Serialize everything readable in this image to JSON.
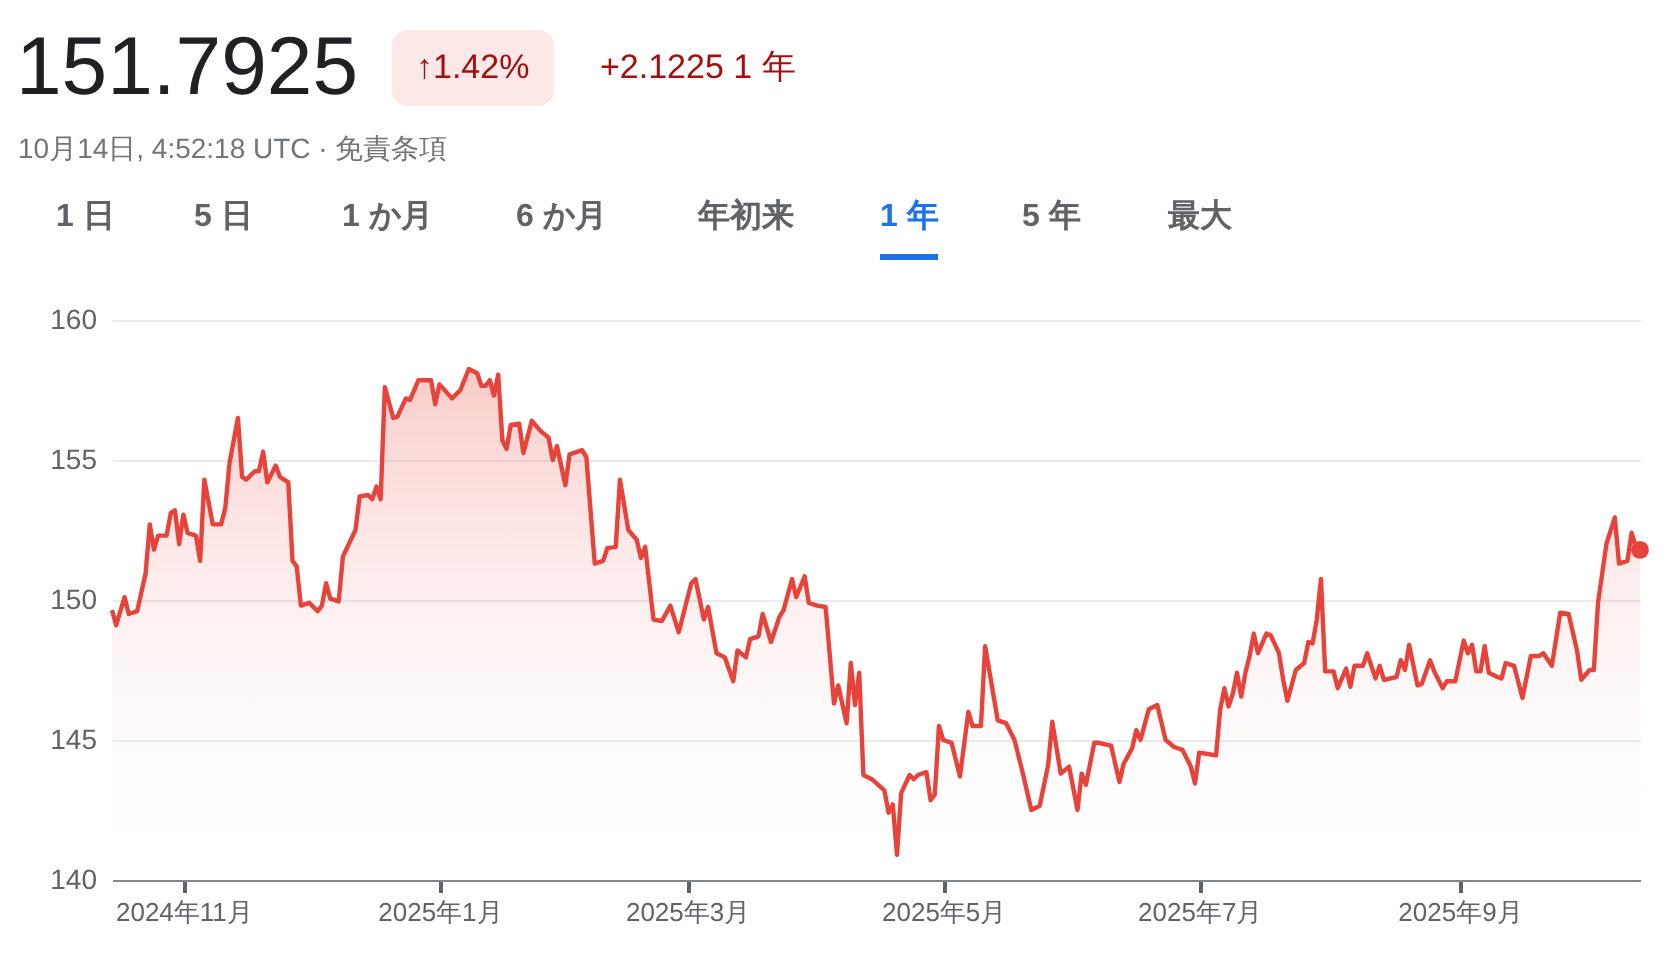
{
  "chart_data": {
    "type": "area",
    "title": "151.7925",
    "subtitle": "10月14日, 4:52:18 UTC · 免責条項",
    "annotations": [
      "↑1.42%",
      "+2.1225 1 年",
      "1 日",
      "5 日",
      "1 か月",
      "6 か月",
      "年初来",
      "1 年",
      "5 年",
      "最大"
    ],
    "series": [
      {
        "color": "#e8433a",
        "x": [
          "2024-10-15",
          "2024-10-16",
          "2024-10-18",
          "2024-10-19",
          "2024-10-21",
          "2024-10-23",
          "2024-10-24",
          "2024-10-25",
          "2024-10-26",
          "2024-10-28",
          "2024-10-29",
          "2024-10-30",
          "2024-10-31",
          "2024-11-01",
          "2024-11-02",
          "2024-11-04",
          "2024-11-05",
          "2024-11-06",
          "2024-11-08",
          "2024-11-10",
          "2024-11-11",
          "2024-11-12",
          "2024-11-14",
          "2024-11-15",
          "2024-11-16",
          "2024-11-18",
          "2024-11-19",
          "2024-11-20",
          "2024-11-21",
          "2024-11-23",
          "2024-11-24",
          "2024-11-26",
          "2024-11-27",
          "2024-11-28",
          "2024-11-29",
          "2024-12-01",
          "2024-12-03",
          "2024-12-04",
          "2024-12-05",
          "2024-12-06",
          "2024-12-08",
          "2024-12-09",
          "2024-12-12",
          "2024-12-13",
          "2024-12-15",
          "2024-12-16",
          "2024-12-17",
          "2024-12-18",
          "2024-12-19",
          "2024-12-21",
          "2024-12-22",
          "2024-12-24",
          "2024-12-25",
          "2024-12-27",
          "2024-12-30",
          "2024-12-31",
          "2025-01-01",
          "2025-01-04",
          "2025-01-06",
          "2025-01-08",
          "2025-01-10",
          "2025-01-11",
          "2025-01-12",
          "2025-01-13",
          "2025-01-14",
          "2025-01-15",
          "2025-01-16",
          "2025-01-17",
          "2025-01-18",
          "2025-01-20",
          "2025-01-21",
          "2025-01-23",
          "2025-01-25",
          "2025-01-27",
          "2025-01-28",
          "2025-01-29",
          "2025-01-31",
          "2025-02-01",
          "2025-02-04",
          "2025-02-05",
          "2025-02-07",
          "2025-02-09",
          "2025-02-10",
          "2025-02-12",
          "2025-02-13",
          "2025-02-15",
          "2025-02-17",
          "2025-02-18",
          "2025-02-19",
          "2025-02-21",
          "2025-02-23",
          "2025-02-25",
          "2025-02-27",
          "2025-03-02",
          "2025-03-03",
          "2025-03-05",
          "2025-03-06",
          "2025-03-08",
          "2025-03-10",
          "2025-03-12",
          "2025-03-13",
          "2025-03-15",
          "2025-03-16",
          "2025-03-18",
          "2025-03-19",
          "2025-03-21",
          "2025-03-23",
          "2025-03-24",
          "2025-03-26",
          "2025-03-27",
          "2025-03-29",
          "2025-03-30",
          "2025-04-01",
          "2025-04-03",
          "2025-04-05",
          "2025-04-06",
          "2025-04-08",
          "2025-04-09",
          "2025-04-10",
          "2025-04-11",
          "2025-04-12",
          "2025-04-14",
          "2025-04-17",
          "2025-04-18",
          "2025-04-19",
          "2025-04-20",
          "2025-04-21",
          "2025-04-23",
          "2025-04-24",
          "2025-04-25",
          "2025-04-27",
          "2025-04-28",
          "2025-04-29",
          "2025-04-30",
          "2025-05-01",
          "2025-05-03",
          "2025-05-05",
          "2025-05-07",
          "2025-05-08",
          "2025-05-10",
          "2025-05-11",
          "2025-05-14",
          "2025-05-16",
          "2025-05-18",
          "2025-05-20",
          "2025-05-22",
          "2025-05-24",
          "2025-05-26",
          "2025-05-27",
          "2025-05-29",
          "2025-05-31",
          "2025-06-02",
          "2025-06-03",
          "2025-06-04",
          "2025-06-06",
          "2025-06-07",
          "2025-06-10",
          "2025-06-12",
          "2025-06-13",
          "2025-06-15",
          "2025-06-16",
          "2025-06-17",
          "2025-06-19",
          "2025-06-21",
          "2025-06-23",
          "2025-06-25",
          "2025-06-27",
          "2025-06-29",
          "2025-06-30",
          "2025-07-01",
          "2025-07-03",
          "2025-07-05",
          "2025-07-06",
          "2025-07-07",
          "2025-07-08",
          "2025-07-09",
          "2025-07-10",
          "2025-07-11",
          "2025-07-12",
          "2025-07-13",
          "2025-07-14",
          "2025-07-15",
          "2025-07-17",
          "2025-07-18",
          "2025-07-20",
          "2025-07-21",
          "2025-07-22",
          "2025-07-24",
          "2025-07-26",
          "2025-07-27",
          "2025-07-28",
          "2025-07-29",
          "2025-07-30",
          "2025-07-31",
          "2025-08-02",
          "2025-08-03",
          "2025-08-05",
          "2025-08-06",
          "2025-08-07",
          "2025-08-09",
          "2025-08-10",
          "2025-08-12",
          "2025-08-13",
          "2025-08-14",
          "2025-08-17",
          "2025-08-18",
          "2025-08-19",
          "2025-08-20",
          "2025-08-22",
          "2025-08-23",
          "2025-08-25",
          "2025-08-26",
          "2025-08-28",
          "2025-08-29",
          "2025-08-31",
          "2025-09-02",
          "2025-09-03",
          "2025-09-04",
          "2025-09-05",
          "2025-09-06",
          "2025-09-07",
          "2025-09-08",
          "2025-09-10",
          "2025-09-11",
          "2025-09-12",
          "2025-09-14",
          "2025-09-16",
          "2025-09-18",
          "2025-09-20",
          "2025-09-21",
          "2025-09-23",
          "2025-09-25",
          "2025-09-27",
          "2025-09-29",
          "2025-09-30",
          "2025-10-02",
          "2025-10-03",
          "2025-10-04",
          "2025-10-06",
          "2025-10-08",
          "2025-10-09",
          "2025-10-11",
          "2025-10-12",
          "2025-10-13",
          "2025-10-14"
        ],
        "values": [
          149.64,
          149.1,
          150.1,
          149.5,
          149.6,
          150.95,
          152.7,
          151.8,
          152.3,
          152.3,
          153.1,
          153.2,
          152.0,
          153.05,
          152.4,
          152.3,
          151.4,
          154.3,
          152.7,
          152.7,
          153.3,
          154.9,
          156.5,
          154.4,
          154.3,
          154.6,
          154.6,
          155.3,
          154.2,
          154.8,
          154.4,
          154.2,
          151.4,
          151.2,
          149.8,
          149.9,
          149.6,
          149.8,
          150.6,
          150.05,
          149.95,
          151.55,
          152.5,
          153.7,
          153.75,
          153.6,
          154.05,
          153.6,
          157.6,
          156.5,
          156.55,
          157.2,
          157.15,
          157.85,
          157.85,
          157.0,
          157.7,
          157.2,
          157.5,
          158.25,
          158.1,
          157.65,
          157.65,
          157.85,
          157.3,
          158.05,
          155.7,
          155.4,
          156.25,
          156.3,
          155.25,
          156.4,
          156.05,
          155.8,
          155.0,
          155.5,
          154.1,
          155.2,
          155.35,
          155.1,
          151.3,
          151.4,
          151.85,
          151.9,
          154.3,
          152.5,
          152.15,
          151.5,
          151.9,
          149.3,
          149.25,
          149.8,
          148.85,
          150.6,
          150.75,
          149.3,
          149.75,
          148.1,
          147.95,
          147.1,
          148.2,
          147.95,
          148.6,
          148.7,
          149.5,
          148.5,
          149.4,
          149.65,
          150.75,
          150.1,
          150.85,
          149.9,
          149.8,
          149.75,
          146.3,
          146.95,
          145.6,
          147.75,
          146.25,
          147.4,
          143.75,
          143.6,
          143.2,
          142.4,
          142.7,
          140.9,
          143.1,
          143.75,
          143.6,
          143.75,
          143.85,
          142.85,
          143.05,
          145.5,
          145.0,
          144.9,
          143.7,
          146.0,
          145.5,
          145.5,
          148.35,
          145.7,
          145.6,
          145.0,
          143.8,
          142.5,
          142.65,
          144.1,
          145.65,
          143.8,
          144.05,
          142.5,
          143.8,
          143.4,
          144.9,
          144.9,
          144.8,
          143.5,
          144.15,
          144.7,
          145.35,
          145.0,
          146.1,
          146.25,
          145.0,
          144.75,
          144.65,
          144.05,
          143.45,
          144.55,
          144.5,
          144.45,
          146.1,
          146.85,
          146.2,
          146.65,
          147.4,
          146.55,
          147.4,
          148.0,
          148.8,
          148.1,
          148.8,
          148.75,
          148.1,
          147.15,
          146.4,
          147.5,
          147.75,
          148.5,
          148.45,
          149.3,
          150.75,
          147.45,
          147.45,
          146.85,
          147.55,
          146.9,
          147.65,
          147.65,
          148.1,
          147.2,
          147.65,
          147.15,
          147.25,
          147.85,
          147.5,
          148.4,
          146.95,
          147.0,
          147.85,
          147.45,
          146.85,
          147.1,
          147.1,
          148.55,
          148.1,
          148.4,
          147.45,
          147.45,
          148.35,
          147.4,
          147.25,
          147.2,
          147.75,
          147.65,
          146.5,
          148.0,
          148.0,
          148.1,
          147.65,
          149.55,
          149.5,
          148.2,
          147.15,
          147.5,
          147.5,
          149.9,
          152.0,
          152.95,
          151.3,
          151.4,
          152.4,
          151.9,
          151.79
        ]
      },
      {
        "type": "scatter",
        "color": "#e8433a",
        "x": [
          "2025-10-14"
        ],
        "values": [
          151.79
        ]
      }
    ],
    "xlim": [
      "2024-10-15",
      "2025-10-14"
    ],
    "xticks": [
      {
        "value": "2024-11-01",
        "label": "2024年11月"
      },
      {
        "value": "2025-01-01",
        "label": "2025年1月"
      },
      {
        "value": "2025-03-01",
        "label": "2025年3月"
      },
      {
        "value": "2025-05-01",
        "label": "2025年5月"
      },
      {
        "value": "2025-07-01",
        "label": "2025年7月"
      },
      {
        "value": "2025-09-01",
        "label": "2025年9月"
      }
    ],
    "ylim": [
      140,
      160
    ],
    "yticks": [
      140,
      145,
      150,
      155,
      160
    ],
    "grid": "y"
  }
}
